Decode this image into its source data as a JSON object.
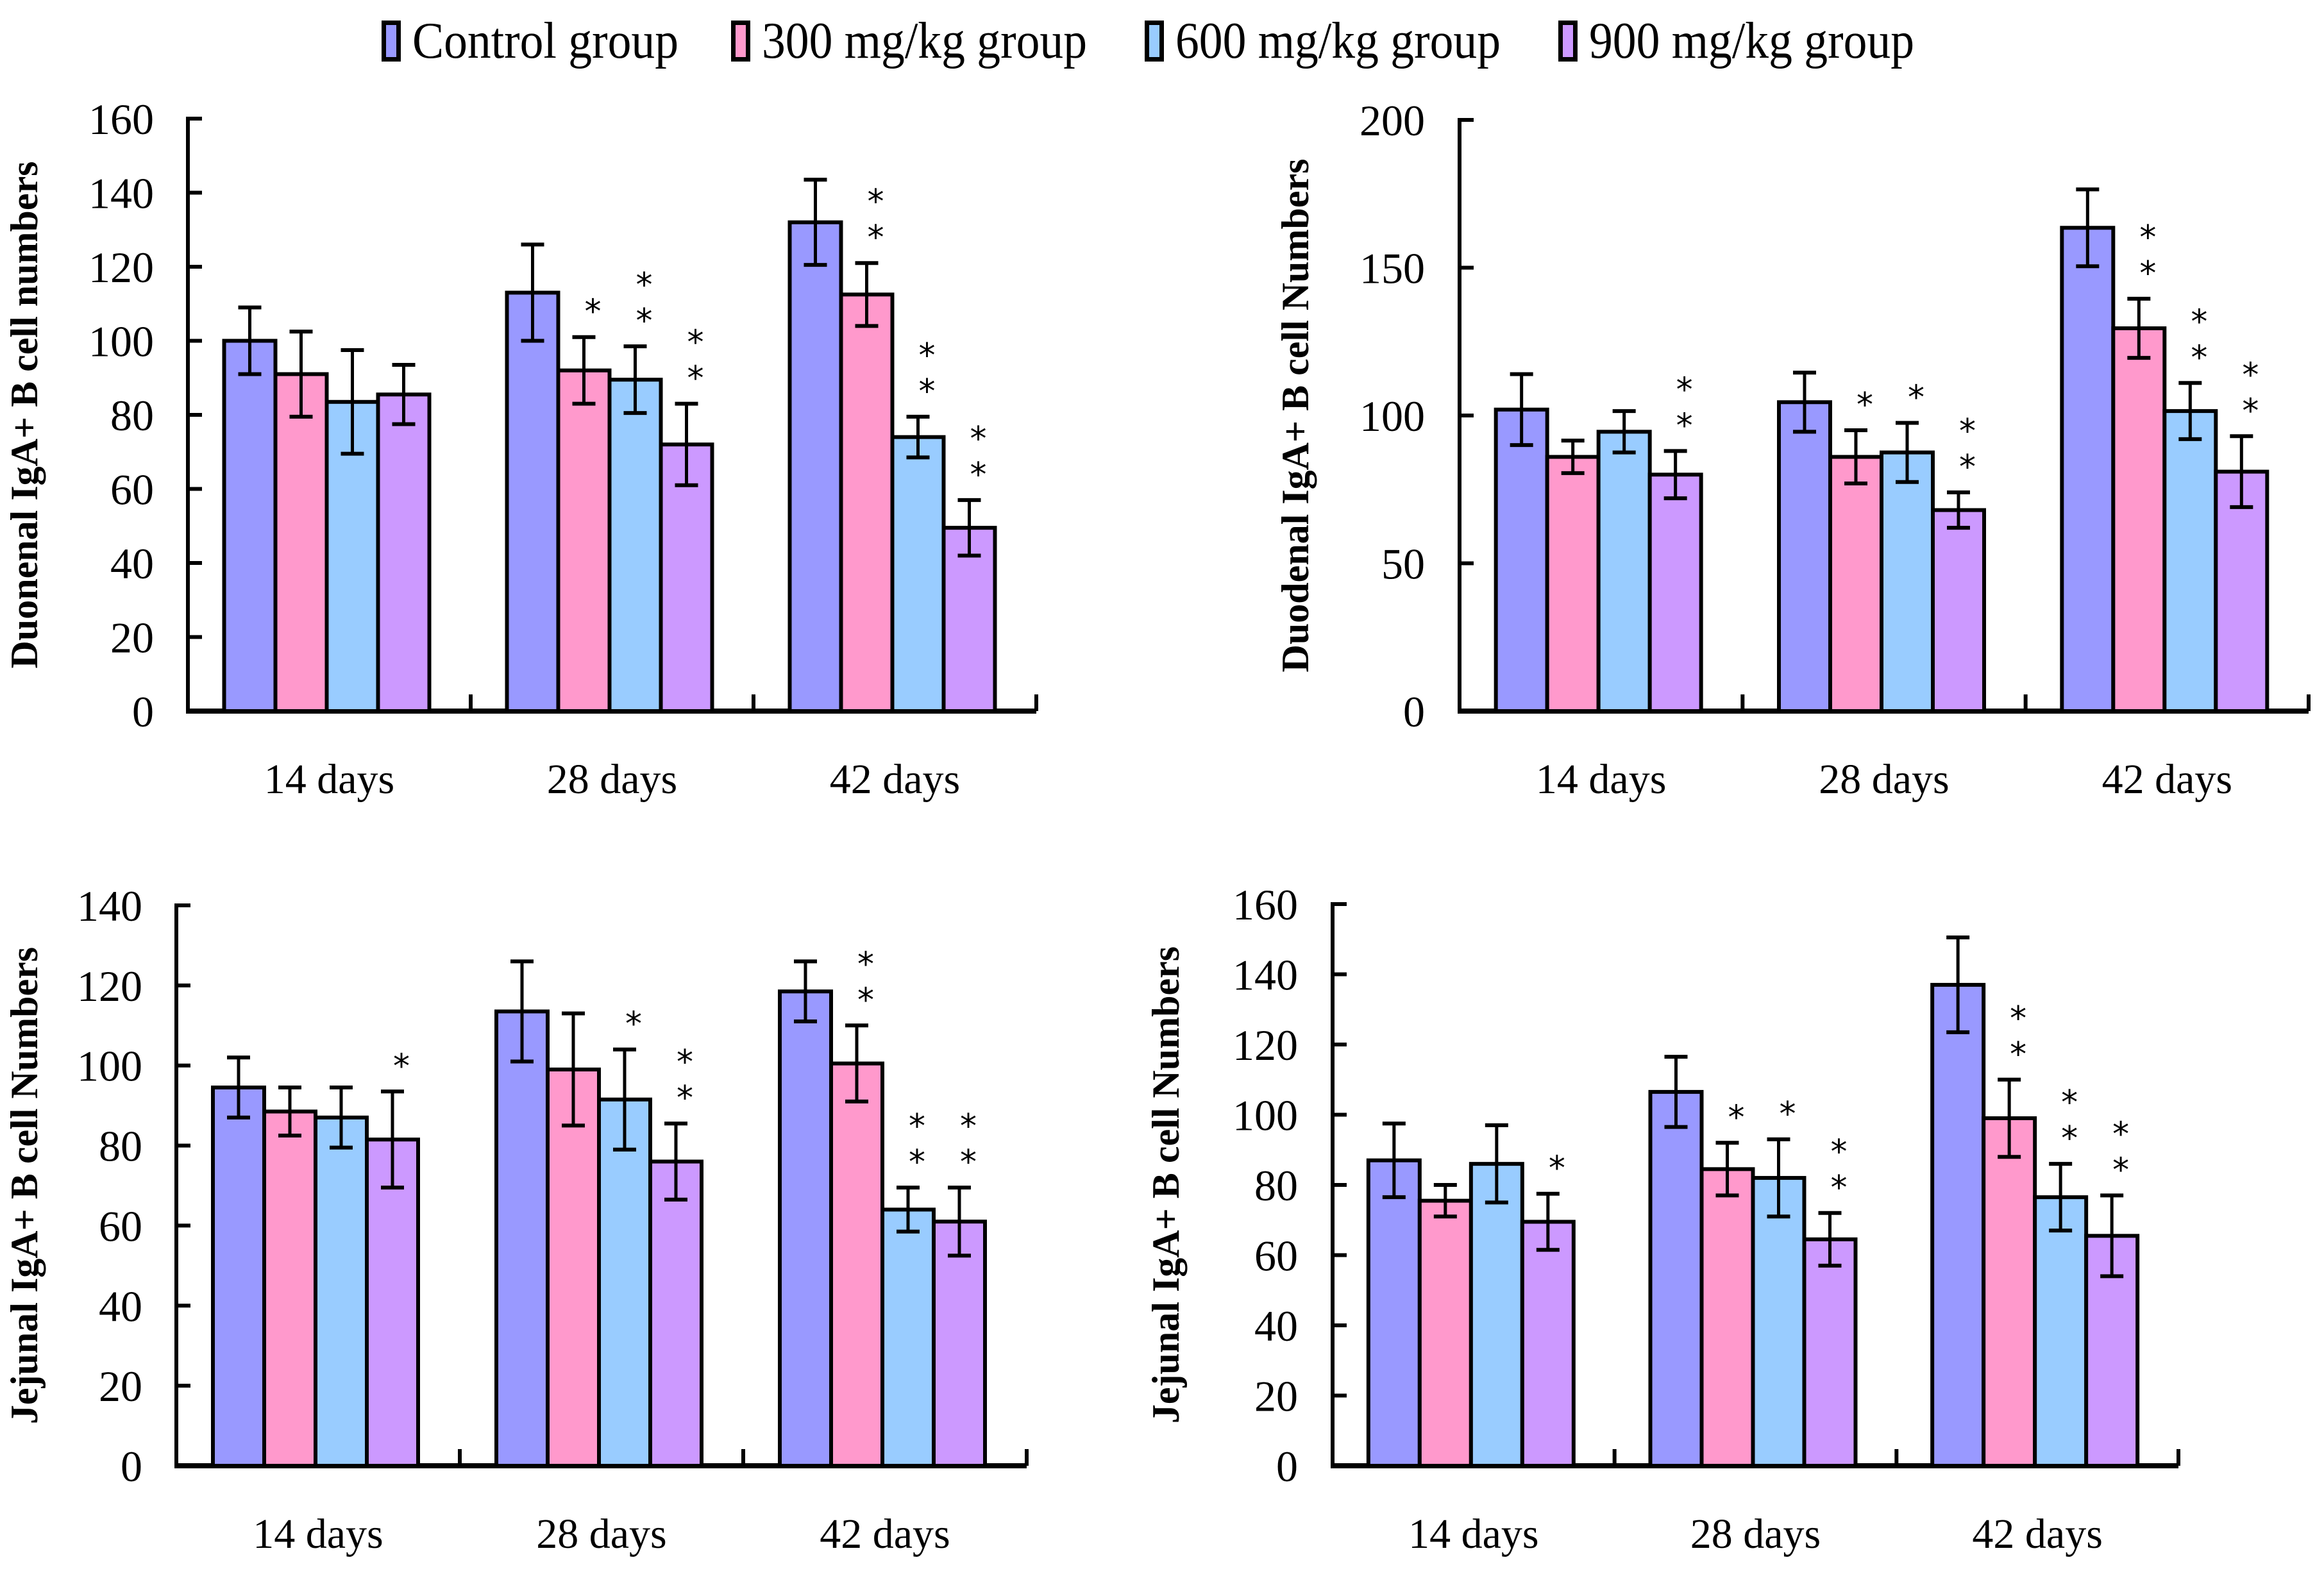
{
  "legend": [
    {
      "label": "Control group",
      "color": "#9999FF"
    },
    {
      "label": "300 mg/kg group",
      "color": "#FF99CC"
    },
    {
      "label": "600 mg/kg group",
      "color": "#99CCFF"
    },
    {
      "label": "900 mg/kg group",
      "color": "#CC99FF"
    }
  ],
  "chart_data": [
    {
      "type": "bar",
      "position": "top-left",
      "title": "",
      "xlabel": "",
      "ylabel": "Duonenal IgA+ B cell numbers",
      "ylim": [
        0,
        160
      ],
      "yticks": [
        0,
        20,
        40,
        60,
        80,
        100,
        120,
        140,
        160
      ],
      "categories": [
        "14 days",
        "28 days",
        "42 days"
      ],
      "grid": false,
      "legend": "top-center",
      "series": [
        {
          "name": "Control group",
          "values": [
            100,
            113,
            132
          ],
          "errors": [
            9,
            13,
            11.5
          ],
          "significance": [
            "",
            "",
            ""
          ]
        },
        {
          "name": "300 mg/kg group",
          "values": [
            91,
            92,
            112.5
          ],
          "errors": [
            11.5,
            9,
            8.5
          ],
          "significance": [
            "",
            "*",
            "**"
          ]
        },
        {
          "name": "600 mg/kg group",
          "values": [
            83.5,
            89.5,
            74
          ],
          "errors": [
            14,
            9,
            5.5
          ],
          "significance": [
            "",
            "**",
            "**"
          ]
        },
        {
          "name": "900 mg/kg group",
          "values": [
            85.5,
            72,
            49.5
          ],
          "errors": [
            8,
            11,
            7.5
          ],
          "significance": [
            "",
            "**",
            "**"
          ]
        }
      ]
    },
    {
      "type": "bar",
      "position": "top-right",
      "title": "",
      "xlabel": "",
      "ylabel": "Duodenal IgA+ B cell Numbers",
      "ylim": [
        0,
        200
      ],
      "yticks": [
        0,
        50,
        100,
        150,
        200
      ],
      "categories": [
        "14 days",
        "28 days",
        "42 days"
      ],
      "grid": false,
      "legend": "top-center",
      "series": [
        {
          "name": "Control group",
          "values": [
            102,
            104.5,
            163.5
          ],
          "errors": [
            12,
            10,
            13
          ],
          "significance": [
            "",
            "",
            ""
          ]
        },
        {
          "name": "300 mg/kg group",
          "values": [
            86,
            86,
            129.5
          ],
          "errors": [
            5.5,
            9,
            10
          ],
          "significance": [
            "",
            "*",
            "**"
          ]
        },
        {
          "name": "600 mg/kg group",
          "values": [
            94.5,
            87.5,
            101.5
          ],
          "errors": [
            7,
            10,
            9.5
          ],
          "significance": [
            "",
            "*",
            "**"
          ]
        },
        {
          "name": "900 mg/kg group",
          "values": [
            80,
            68,
            81
          ],
          "errors": [
            8,
            6,
            12
          ],
          "significance": [
            "**",
            "**",
            "**"
          ]
        }
      ]
    },
    {
      "type": "bar",
      "position": "bottom-left",
      "title": "",
      "xlabel": "",
      "ylabel": "Jejunal IgA+ B cell Numbers",
      "ylim": [
        0,
        140
      ],
      "yticks": [
        0,
        20,
        40,
        60,
        80,
        100,
        120,
        140
      ],
      "categories": [
        "14 days",
        "28 days",
        "42 days"
      ],
      "grid": false,
      "legend": "top-center",
      "series": [
        {
          "name": "Control group",
          "values": [
            94.5,
            113.5,
            118.5
          ],
          "errors": [
            7.5,
            12.5,
            7.5
          ],
          "significance": [
            "",
            "",
            ""
          ]
        },
        {
          "name": "300 mg/kg group",
          "values": [
            88.5,
            99,
            100.5
          ],
          "errors": [
            6,
            14,
            9.5
          ],
          "significance": [
            "",
            "",
            "**"
          ]
        },
        {
          "name": "600 mg/kg group",
          "values": [
            87,
            91.5,
            64
          ],
          "errors": [
            7.5,
            12.5,
            5.5
          ],
          "significance": [
            "",
            "*",
            "**"
          ]
        },
        {
          "name": "900 mg/kg group",
          "values": [
            81.5,
            76,
            61
          ],
          "errors": [
            12,
            9.5,
            8.5
          ],
          "significance": [
            "*",
            "**",
            "**"
          ]
        }
      ]
    },
    {
      "type": "bar",
      "position": "bottom-right",
      "title": "",
      "xlabel": "",
      "ylabel": "Jejunal IgA+ B cell Numbers",
      "ylim": [
        0,
        160
      ],
      "yticks": [
        0,
        20,
        40,
        60,
        80,
        100,
        120,
        140,
        160
      ],
      "categories": [
        "14 days",
        "28 days",
        "42 days"
      ],
      "grid": false,
      "legend": "top-center",
      "series": [
        {
          "name": "Control group",
          "values": [
            87,
            106.5,
            137
          ],
          "errors": [
            10.5,
            10,
            13.5
          ],
          "significance": [
            "",
            "",
            ""
          ]
        },
        {
          "name": "300 mg/kg group",
          "values": [
            75.5,
            84.5,
            99
          ],
          "errors": [
            4.5,
            7.5,
            11
          ],
          "significance": [
            "",
            "*",
            "**"
          ]
        },
        {
          "name": "600 mg/kg group",
          "values": [
            86,
            82,
            76.5
          ],
          "errors": [
            11,
            11,
            9.5
          ],
          "significance": [
            "",
            "*",
            "**"
          ]
        },
        {
          "name": "900 mg/kg group",
          "values": [
            69.5,
            64.5,
            65.5
          ],
          "errors": [
            8,
            7.5,
            11.5
          ],
          "significance": [
            "*",
            "**",
            "**"
          ]
        }
      ]
    }
  ]
}
